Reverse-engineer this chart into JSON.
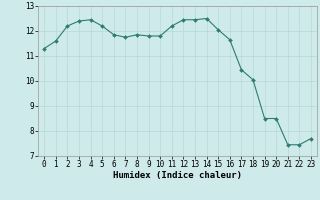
{
  "x": [
    0,
    1,
    2,
    3,
    4,
    5,
    6,
    7,
    8,
    9,
    10,
    11,
    12,
    13,
    14,
    15,
    16,
    17,
    18,
    19,
    20,
    21,
    22,
    23
  ],
  "y": [
    11.3,
    11.6,
    12.2,
    12.4,
    12.45,
    12.2,
    11.85,
    11.75,
    11.85,
    11.8,
    11.8,
    12.2,
    12.45,
    12.45,
    12.5,
    12.05,
    11.65,
    10.45,
    10.05,
    8.5,
    8.5,
    7.45,
    7.45,
    7.7
  ],
  "xlabel": "Humidex (Indice chaleur)",
  "xlim": [
    -0.5,
    23.5
  ],
  "ylim": [
    7,
    13
  ],
  "yticks": [
    7,
    8,
    9,
    10,
    11,
    12,
    13
  ],
  "xticks": [
    0,
    1,
    2,
    3,
    4,
    5,
    6,
    7,
    8,
    9,
    10,
    11,
    12,
    13,
    14,
    15,
    16,
    17,
    18,
    19,
    20,
    21,
    22,
    23
  ],
  "line_color": "#2e7d6e",
  "marker": "D",
  "marker_size": 2.0,
  "bg_color": "#ceeaea",
  "grid_color": "#b8d8d8",
  "label_fontsize": 6.5,
  "tick_fontsize": 5.5
}
